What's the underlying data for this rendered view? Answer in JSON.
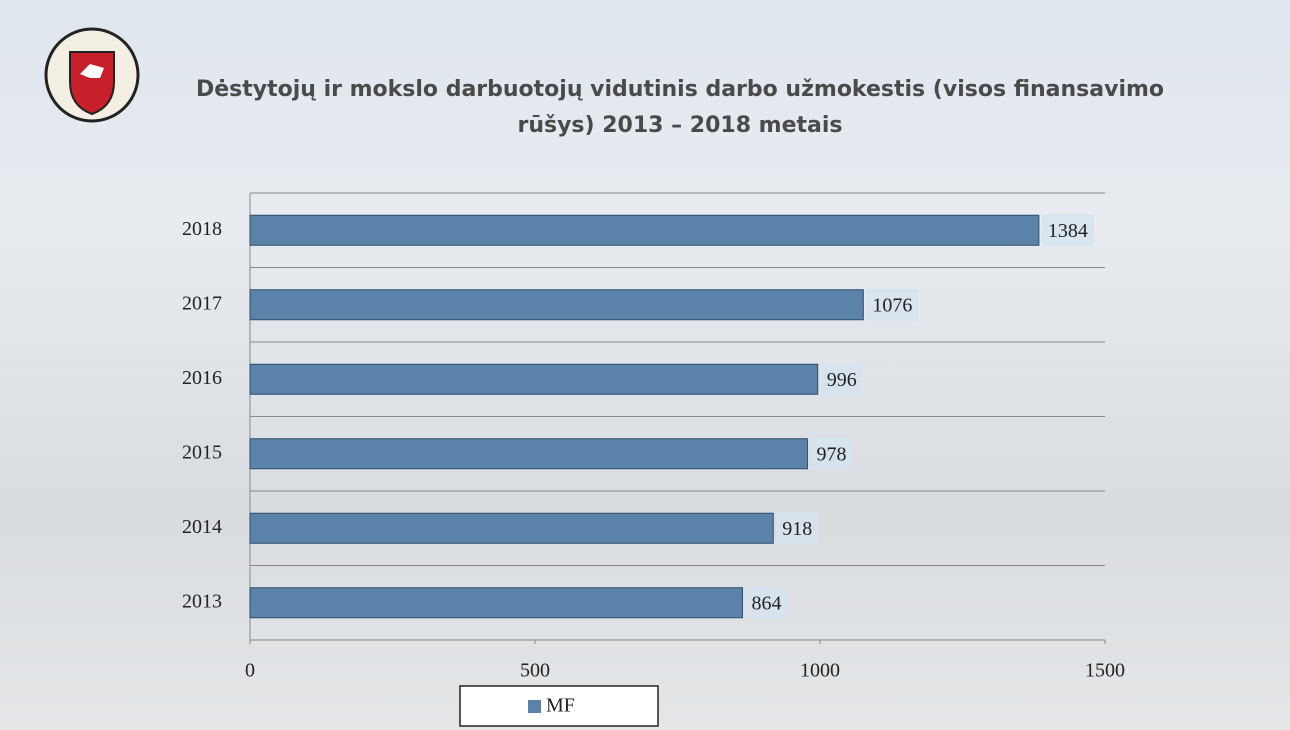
{
  "chart_data": {
    "type": "bar",
    "orientation": "horizontal",
    "title": "Dėstytojų  ir mokslo darbuotojų vidutinis darbo užmokestis (visos finansavimo rūšys) 2013 – 2018 metais",
    "categories": [
      "2018",
      "2017",
      "2016",
      "2015",
      "2014",
      "2013"
    ],
    "series": [
      {
        "name": "MF",
        "color": "#5b82a8",
        "values": [
          1384,
          1076,
          996,
          978,
          918,
          864
        ]
      }
    ],
    "xlim": [
      0,
      1500
    ],
    "xticks": [
      0,
      500,
      1000,
      1500
    ],
    "legend": "bottom"
  }
}
